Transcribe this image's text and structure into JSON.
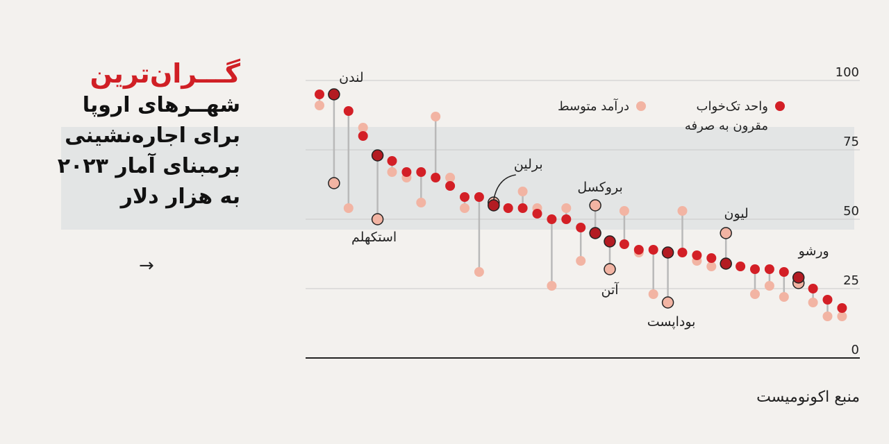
{
  "header": {
    "title_red": "گـــران‌ترین",
    "title_lines": [
      "شهــرهای اروپا",
      "برای اجاره‌نشینی",
      "برمبنای آمار ۲۰۲۳",
      "به هزار دلار"
    ],
    "arrow": "→"
  },
  "legend": {
    "one_bed": "واحد تک‌خواب مقرون به صرفه",
    "avg_income": "درآمد متوسط"
  },
  "source": "منبع اکونومیست",
  "colors": {
    "one_bed": "#d31f26",
    "avg_income": "#f2b4a3",
    "highlight_one_bed": "#b31b22",
    "highlight_income": "#f2b4a3",
    "connector": "#b9b9b9",
    "band": "#d0d6da"
  },
  "chart_data": {
    "type": "scatter",
    "ylim": [
      0,
      100
    ],
    "yticks": [
      0,
      25,
      50,
      75,
      100
    ],
    "grid": true,
    "legend_position": "top-right",
    "series": [
      {
        "name": "واحد تک‌خواب مقرون به صرفه",
        "values": [
          95,
          95,
          89,
          80,
          73,
          71,
          67,
          67,
          65,
          62,
          58,
          58,
          55,
          54,
          54,
          52,
          50,
          50,
          47,
          45,
          42,
          41,
          39,
          39,
          38,
          38,
          37,
          36,
          34,
          33,
          32,
          32,
          31,
          29,
          25,
          21,
          18
        ]
      },
      {
        "name": "درآمد متوسط",
        "values": [
          91,
          63,
          54,
          83,
          50,
          67,
          65,
          56,
          87,
          65,
          54,
          31,
          56,
          54,
          60,
          54,
          26,
          54,
          35,
          55,
          32,
          53,
          38,
          23,
          20,
          53,
          35,
          33,
          45,
          33,
          23,
          26,
          22,
          27,
          20,
          15,
          15
        ]
      }
    ],
    "highlighted_cities": [
      {
        "label": "لندن",
        "index": 1
      },
      {
        "label": "استکهلم",
        "index": 4
      },
      {
        "label": "برلین",
        "index": 12
      },
      {
        "label": "بروکسل",
        "index": 19
      },
      {
        "label": "آتن",
        "index": 20
      },
      {
        "label": "بوداپست",
        "index": 24
      },
      {
        "label": "لیون",
        "index": 28
      },
      {
        "label": "ورشو",
        "index": 33
      }
    ]
  }
}
